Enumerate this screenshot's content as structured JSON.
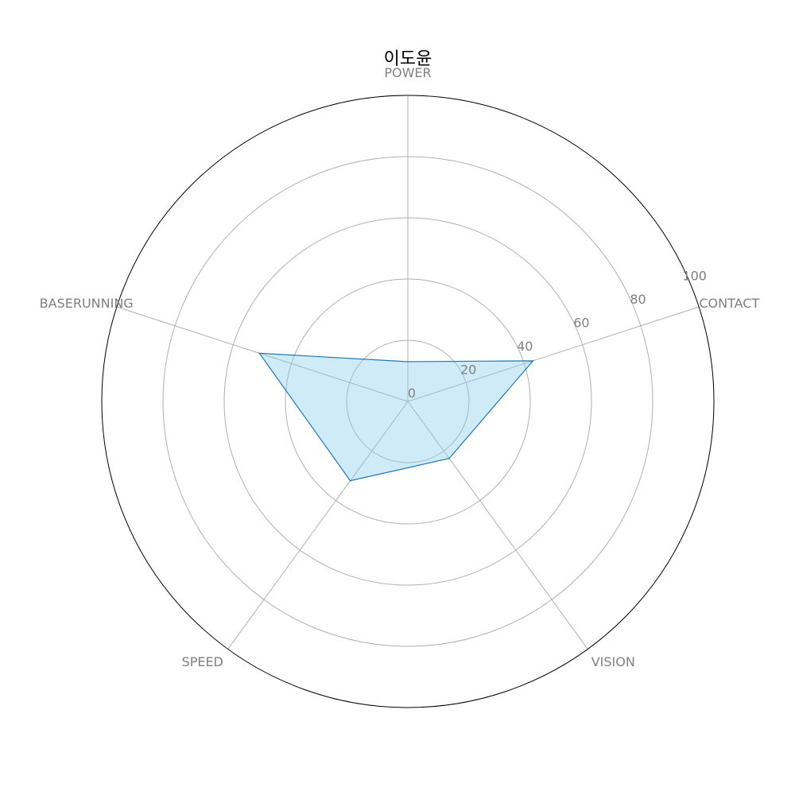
{
  "chart_data": {
    "type": "radar",
    "title": "이도윤",
    "axes": [
      "POWER",
      "CONTACT",
      "VISION",
      "SPEED",
      "BASERUNNING"
    ],
    "series": [
      {
        "values": [
          13,
          43,
          23,
          32,
          51
        ]
      }
    ],
    "rlim": [
      0,
      100
    ],
    "rticks": [
      0,
      20,
      40,
      60,
      80,
      100
    ],
    "grid": true,
    "colors": {
      "line": "#1f77b4",
      "fill": "#87ceeb",
      "grid": "#b0b0b0",
      "frame": "#000000",
      "label": "#808080"
    }
  }
}
